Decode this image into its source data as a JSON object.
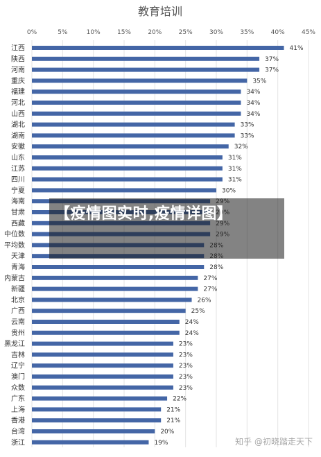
{
  "chart_data": {
    "type": "bar",
    "orientation": "horizontal",
    "title": "教育培训",
    "xlabel": "",
    "ylabel": "",
    "xlim": [
      0,
      45
    ],
    "x_ticks": [
      "0%",
      "5%",
      "10%",
      "15%",
      "20%",
      "25%",
      "30%",
      "35%",
      "40%",
      "45%"
    ],
    "x_tick_values": [
      0,
      5,
      10,
      15,
      20,
      25,
      30,
      35,
      40,
      45
    ],
    "grid": true,
    "bar_color": "#4466a6",
    "categories": [
      "江西",
      "陕西",
      "河南",
      "重庆",
      "福建",
      "河北",
      "山西",
      "湖北",
      "湖南",
      "安徽",
      "山东",
      "江苏",
      "四川",
      "宁夏",
      "海南",
      "甘肃",
      "西藏",
      "中位数",
      "平均数",
      "天津",
      "青海",
      "内蒙古",
      "新疆",
      "北京",
      "广西",
      "云南",
      "贵州",
      "黑龙江",
      "吉林",
      "辽宁",
      "澳门",
      "众数",
      "广东",
      "上海",
      "香港",
      "台湾",
      "浙江"
    ],
    "values": [
      41,
      37,
      37,
      35,
      34,
      34,
      34,
      33,
      33,
      32,
      31,
      31,
      31,
      30,
      29,
      29,
      29,
      29,
      28,
      28,
      28,
      27,
      27,
      26,
      25,
      24,
      24,
      23,
      23,
      23,
      23,
      23,
      22,
      21,
      21,
      20,
      19
    ],
    "value_labels": [
      "41%",
      "37%",
      "37%",
      "35%",
      "34%",
      "34%",
      "34%",
      "33%",
      "33%",
      "32%",
      "31%",
      "31%",
      "31%",
      "30%",
      "29%",
      "29%",
      "29%",
      "29%",
      "28%",
      "28%",
      "28%",
      "27%",
      "27%",
      "26%",
      "25%",
      "24%",
      "24%",
      "23%",
      "23%",
      "23%",
      "23%",
      "23%",
      "22%",
      "21%",
      "21%",
      "20%",
      "19%"
    ]
  },
  "overlay": {
    "text": "【疫情图实时,疫情详图】"
  },
  "watermark": {
    "text": "知乎 @初晓踏走天下"
  }
}
